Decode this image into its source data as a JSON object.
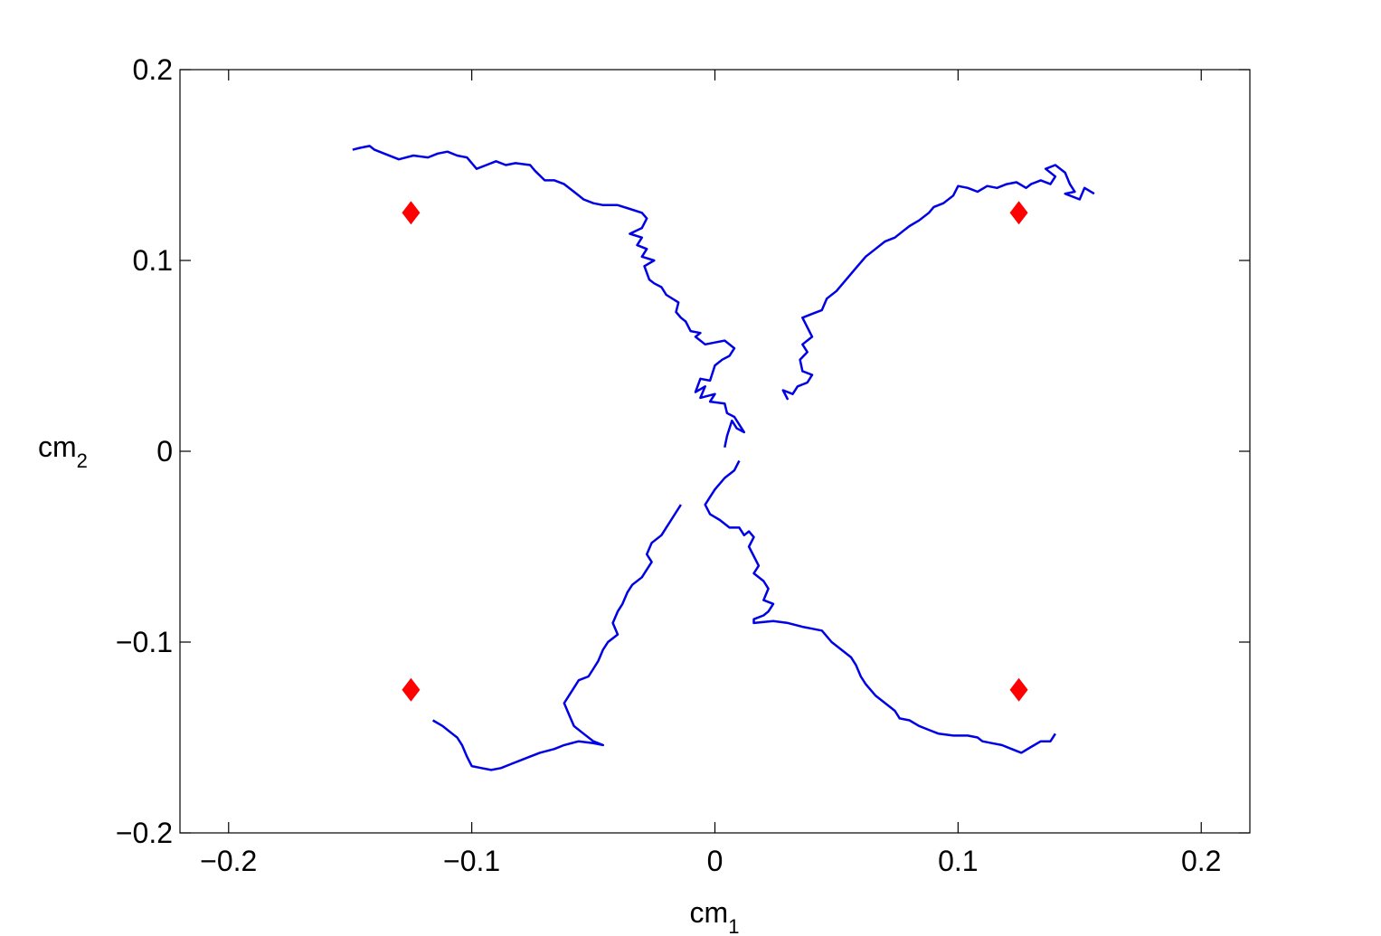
{
  "chart_data": {
    "type": "scatter",
    "title": "",
    "xlabel": "cm",
    "xlabel_subscript": "1",
    "ylabel": "cm",
    "ylabel_subscript": "2",
    "xlim": [
      -0.22,
      0.22
    ],
    "ylim": [
      -0.2,
      0.2
    ],
    "xticks": [
      -0.2,
      -0.1,
      0,
      0.1,
      0.2
    ],
    "xtick_labels": [
      "−0.2",
      "−0.1",
      "0",
      "0.1",
      "0.2"
    ],
    "yticks": [
      0.2,
      0.1,
      0,
      -0.1,
      -0.2
    ],
    "ytick_labels": [
      "0.2",
      "0.1",
      "0",
      "−0.1",
      "−0.2"
    ],
    "grid": false,
    "legend": "none",
    "colors": {
      "path": "#0000e6",
      "target": "#ff0000"
    },
    "paths": [
      {
        "points": [
          [
            0.004,
            0.002
          ],
          [
            0.005,
            0.008
          ],
          [
            0.007,
            0.016
          ],
          [
            0.009,
            0.012
          ],
          [
            0.012,
            0.01
          ],
          [
            0.008,
            0.018
          ],
          [
            0.005,
            0.02
          ],
          [
            0.004,
            0.025
          ],
          [
            -0.002,
            0.026
          ],
          [
            0.0,
            0.03
          ],
          [
            -0.006,
            0.028
          ],
          [
            -0.004,
            0.034
          ],
          [
            -0.008,
            0.031
          ],
          [
            -0.006,
            0.038
          ],
          [
            -0.002,
            0.037
          ],
          [
            0.0,
            0.045
          ],
          [
            0.003,
            0.048
          ],
          [
            0.006,
            0.05
          ],
          [
            0.008,
            0.054
          ],
          [
            0.004,
            0.058
          ],
          [
            0.0,
            0.057
          ],
          [
            -0.004,
            0.056
          ],
          [
            -0.008,
            0.06
          ],
          [
            -0.006,
            0.062
          ],
          [
            -0.01,
            0.063
          ],
          [
            -0.012,
            0.068
          ],
          [
            -0.014,
            0.07
          ],
          [
            -0.016,
            0.073
          ],
          [
            -0.015,
            0.078
          ],
          [
            -0.02,
            0.082
          ],
          [
            -0.022,
            0.086
          ],
          [
            -0.025,
            0.088
          ],
          [
            -0.027,
            0.09
          ],
          [
            -0.029,
            0.097
          ],
          [
            -0.025,
            0.1
          ],
          [
            -0.03,
            0.102
          ],
          [
            -0.028,
            0.106
          ],
          [
            -0.032,
            0.108
          ],
          [
            -0.03,
            0.112
          ],
          [
            -0.035,
            0.114
          ],
          [
            -0.03,
            0.117
          ],
          [
            -0.028,
            0.122
          ],
          [
            -0.03,
            0.125
          ],
          [
            -0.035,
            0.127
          ],
          [
            -0.04,
            0.129
          ],
          [
            -0.046,
            0.129
          ],
          [
            -0.05,
            0.13
          ],
          [
            -0.054,
            0.132
          ],
          [
            -0.058,
            0.136
          ],
          [
            -0.062,
            0.14
          ],
          [
            -0.066,
            0.142
          ],
          [
            -0.07,
            0.142
          ],
          [
            -0.074,
            0.147
          ],
          [
            -0.076,
            0.15
          ],
          [
            -0.082,
            0.151
          ],
          [
            -0.086,
            0.15
          ],
          [
            -0.09,
            0.152
          ],
          [
            -0.094,
            0.15
          ],
          [
            -0.098,
            0.148
          ],
          [
            -0.102,
            0.154
          ],
          [
            -0.106,
            0.155
          ],
          [
            -0.11,
            0.157
          ],
          [
            -0.114,
            0.156
          ],
          [
            -0.118,
            0.154
          ],
          [
            -0.124,
            0.155
          ],
          [
            -0.13,
            0.153
          ],
          [
            -0.136,
            0.156
          ],
          [
            -0.14,
            0.158
          ],
          [
            -0.142,
            0.16
          ],
          [
            -0.146,
            0.159
          ],
          [
            -0.149,
            0.158
          ]
        ]
      },
      {
        "points": [
          [
            0.03,
            0.027
          ],
          [
            0.028,
            0.032
          ],
          [
            0.032,
            0.03
          ],
          [
            0.034,
            0.034
          ],
          [
            0.038,
            0.036
          ],
          [
            0.04,
            0.04
          ],
          [
            0.036,
            0.042
          ],
          [
            0.035,
            0.048
          ],
          [
            0.038,
            0.052
          ],
          [
            0.036,
            0.056
          ],
          [
            0.04,
            0.06
          ],
          [
            0.038,
            0.065
          ],
          [
            0.036,
            0.07
          ],
          [
            0.04,
            0.072
          ],
          [
            0.044,
            0.074
          ],
          [
            0.046,
            0.08
          ],
          [
            0.05,
            0.084
          ],
          [
            0.054,
            0.09
          ],
          [
            0.058,
            0.096
          ],
          [
            0.062,
            0.102
          ],
          [
            0.066,
            0.106
          ],
          [
            0.07,
            0.11
          ],
          [
            0.074,
            0.112
          ],
          [
            0.078,
            0.116
          ],
          [
            0.08,
            0.118
          ],
          [
            0.084,
            0.121
          ],
          [
            0.088,
            0.125
          ],
          [
            0.09,
            0.128
          ],
          [
            0.094,
            0.13
          ],
          [
            0.098,
            0.134
          ],
          [
            0.1,
            0.139
          ],
          [
            0.104,
            0.138
          ],
          [
            0.108,
            0.136
          ],
          [
            0.112,
            0.139
          ],
          [
            0.116,
            0.138
          ],
          [
            0.12,
            0.14
          ],
          [
            0.124,
            0.141
          ],
          [
            0.128,
            0.138
          ],
          [
            0.13,
            0.14
          ],
          [
            0.134,
            0.142
          ],
          [
            0.138,
            0.14
          ],
          [
            0.14,
            0.144
          ],
          [
            0.136,
            0.148
          ],
          [
            0.14,
            0.15
          ],
          [
            0.144,
            0.146
          ],
          [
            0.146,
            0.14
          ],
          [
            0.148,
            0.136
          ],
          [
            0.144,
            0.135
          ],
          [
            0.15,
            0.132
          ],
          [
            0.152,
            0.138
          ],
          [
            0.156,
            0.135
          ]
        ]
      },
      {
        "points": [
          [
            0.01,
            -0.005
          ],
          [
            0.008,
            -0.01
          ],
          [
            0.004,
            -0.014
          ],
          [
            0.0,
            -0.02
          ],
          [
            -0.002,
            -0.024
          ],
          [
            -0.004,
            -0.028
          ],
          [
            -0.002,
            -0.033
          ],
          [
            0.002,
            -0.036
          ],
          [
            0.006,
            -0.04
          ],
          [
            0.01,
            -0.04
          ],
          [
            0.012,
            -0.044
          ],
          [
            0.014,
            -0.042
          ],
          [
            0.016,
            -0.045
          ],
          [
            0.014,
            -0.05
          ],
          [
            0.016,
            -0.055
          ],
          [
            0.018,
            -0.06
          ],
          [
            0.016,
            -0.064
          ],
          [
            0.02,
            -0.068
          ],
          [
            0.022,
            -0.072
          ],
          [
            0.02,
            -0.078
          ],
          [
            0.024,
            -0.08
          ],
          [
            0.022,
            -0.084
          ],
          [
            0.02,
            -0.086
          ],
          [
            0.016,
            -0.088
          ],
          [
            0.016,
            -0.09
          ],
          [
            0.024,
            -0.089
          ],
          [
            0.03,
            -0.09
          ],
          [
            0.036,
            -0.092
          ],
          [
            0.04,
            -0.093
          ],
          [
            0.044,
            -0.094
          ],
          [
            0.048,
            -0.1
          ],
          [
            0.052,
            -0.104
          ],
          [
            0.056,
            -0.108
          ],
          [
            0.058,
            -0.112
          ],
          [
            0.06,
            -0.118
          ],
          [
            0.062,
            -0.122
          ],
          [
            0.066,
            -0.128
          ],
          [
            0.07,
            -0.132
          ],
          [
            0.074,
            -0.136
          ],
          [
            0.076,
            -0.14
          ],
          [
            0.08,
            -0.141
          ],
          [
            0.084,
            -0.144
          ],
          [
            0.088,
            -0.146
          ],
          [
            0.092,
            -0.148
          ],
          [
            0.098,
            -0.149
          ],
          [
            0.104,
            -0.149
          ],
          [
            0.108,
            -0.15
          ],
          [
            0.11,
            -0.152
          ],
          [
            0.114,
            -0.153
          ],
          [
            0.118,
            -0.154
          ],
          [
            0.122,
            -0.156
          ],
          [
            0.126,
            -0.158
          ],
          [
            0.13,
            -0.155
          ],
          [
            0.134,
            -0.152
          ],
          [
            0.138,
            -0.152
          ],
          [
            0.14,
            -0.148
          ]
        ]
      },
      {
        "points": [
          [
            -0.014,
            -0.028
          ],
          [
            -0.016,
            -0.032
          ],
          [
            -0.018,
            -0.036
          ],
          [
            -0.02,
            -0.04
          ],
          [
            -0.022,
            -0.044
          ],
          [
            -0.026,
            -0.048
          ],
          [
            -0.028,
            -0.054
          ],
          [
            -0.026,
            -0.058
          ],
          [
            -0.028,
            -0.062
          ],
          [
            -0.03,
            -0.066
          ],
          [
            -0.034,
            -0.07
          ],
          [
            -0.036,
            -0.074
          ],
          [
            -0.038,
            -0.08
          ],
          [
            -0.04,
            -0.084
          ],
          [
            -0.042,
            -0.09
          ],
          [
            -0.04,
            -0.096
          ],
          [
            -0.044,
            -0.1
          ],
          [
            -0.046,
            -0.104
          ],
          [
            -0.048,
            -0.11
          ],
          [
            -0.05,
            -0.114
          ],
          [
            -0.052,
            -0.118
          ],
          [
            -0.056,
            -0.12
          ],
          [
            -0.058,
            -0.124
          ],
          [
            -0.06,
            -0.128
          ],
          [
            -0.062,
            -0.132
          ],
          [
            -0.06,
            -0.138
          ],
          [
            -0.058,
            -0.144
          ],
          [
            -0.054,
            -0.148
          ],
          [
            -0.05,
            -0.152
          ],
          [
            -0.046,
            -0.154
          ],
          [
            -0.05,
            -0.153
          ],
          [
            -0.056,
            -0.152
          ],
          [
            -0.062,
            -0.154
          ],
          [
            -0.066,
            -0.156
          ],
          [
            -0.072,
            -0.158
          ],
          [
            -0.076,
            -0.16
          ],
          [
            -0.08,
            -0.162
          ],
          [
            -0.084,
            -0.164
          ],
          [
            -0.088,
            -0.166
          ],
          [
            -0.092,
            -0.167
          ],
          [
            -0.096,
            -0.166
          ],
          [
            -0.1,
            -0.165
          ],
          [
            -0.102,
            -0.16
          ],
          [
            -0.104,
            -0.154
          ],
          [
            -0.106,
            -0.15
          ],
          [
            -0.108,
            -0.148
          ],
          [
            -0.11,
            -0.146
          ],
          [
            -0.112,
            -0.144
          ],
          [
            -0.116,
            -0.141
          ]
        ]
      }
    ],
    "targets": [
      [
        -0.125,
        0.125
      ],
      [
        0.125,
        0.125
      ],
      [
        -0.125,
        -0.125
      ],
      [
        0.125,
        -0.125
      ]
    ]
  }
}
